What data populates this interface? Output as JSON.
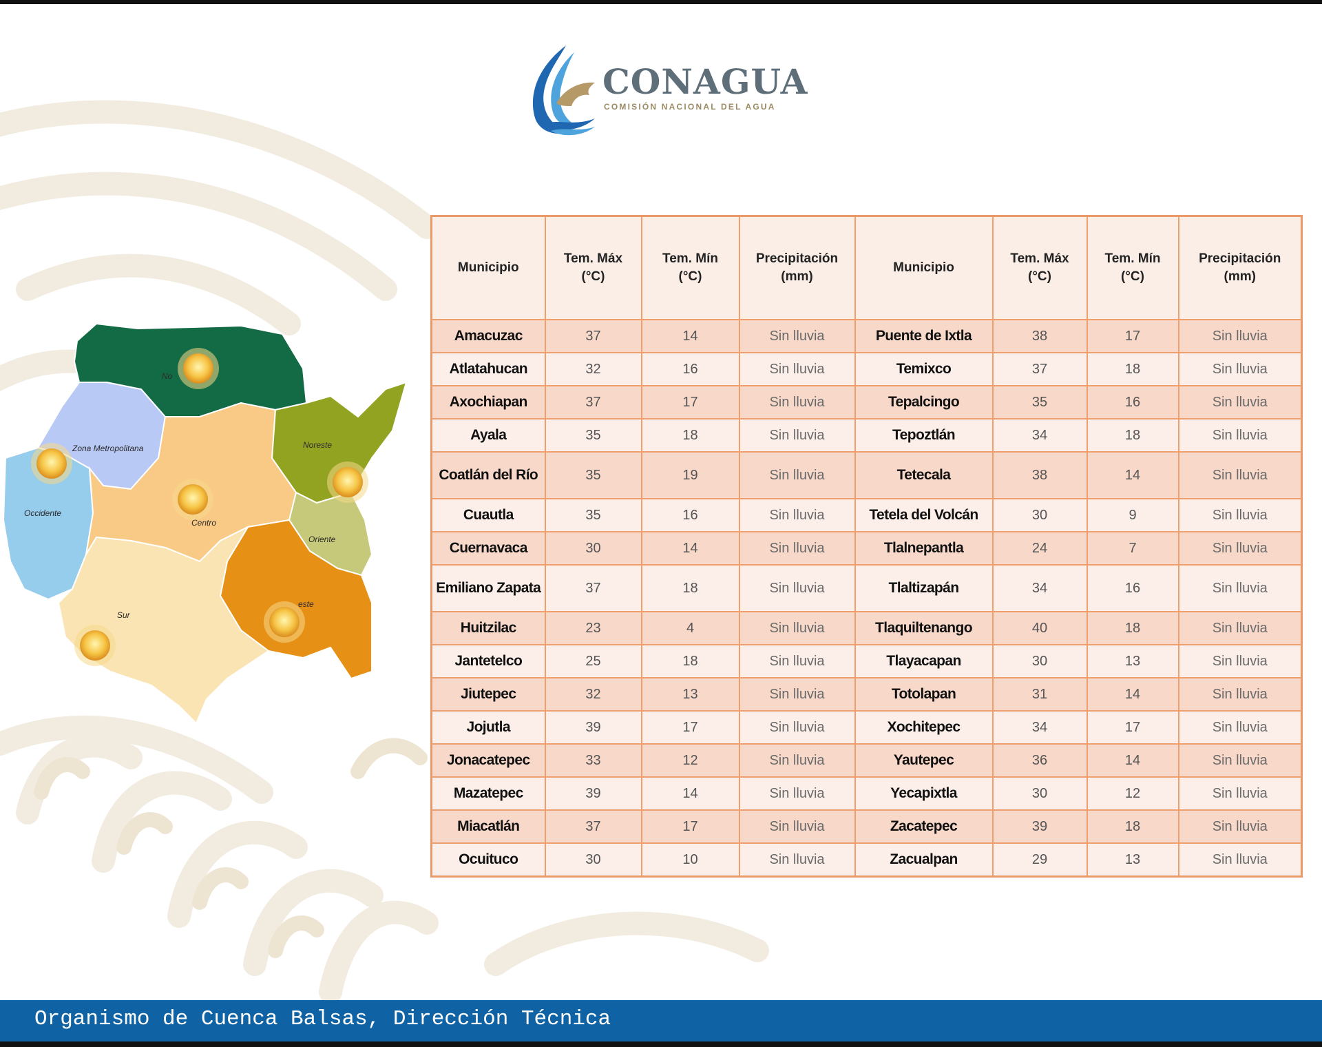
{
  "logo": {
    "name": "CONAGUA",
    "subtitle": "COMISIÓN NACIONAL DEL AGUA"
  },
  "map": {
    "regions": [
      {
        "key": "norte",
        "label": "No",
        "color": "#136b45",
        "weather_icon": "sun-icon"
      },
      {
        "key": "zona-metropolitana",
        "label": "Zona Metropolitana",
        "color": "#b8c9f6",
        "weather_icon": "sun-icon"
      },
      {
        "key": "noreste",
        "label": "Noreste",
        "color": "#92a321",
        "weather_icon": "sun-icon"
      },
      {
        "key": "occidente",
        "label": "Occidente",
        "color": "#96ccec",
        "weather_icon": ""
      },
      {
        "key": "centro",
        "label": "Centro",
        "color": "#f8ca85",
        "weather_icon": "sun-icon"
      },
      {
        "key": "oriente",
        "label": "Oriente",
        "color": "#c6c97a",
        "weather_icon": ""
      },
      {
        "key": "sur",
        "label": "Sur",
        "color": "#fbe4b3",
        "weather_icon": "sun-icon"
      },
      {
        "key": "sureste",
        "label": "este",
        "color": "#e69016",
        "weather_icon": "sun-icon"
      }
    ]
  },
  "table": {
    "headers": {
      "municipio": "Municipio",
      "tmax": [
        "Tem. Máx",
        "(°C)"
      ],
      "tmin": [
        "Tem. Mín",
        "(°C)"
      ],
      "precip": [
        "Precipitación",
        "(mm)"
      ]
    },
    "rows": [
      {
        "m1": "Amacuzac",
        "max1": "37",
        "min1": "14",
        "p1": "Sin lluvia",
        "m2": "Puente de Ixtla",
        "max2": "38",
        "min2": "17",
        "p2": "Sin lluvia"
      },
      {
        "m1": "Atlatahucan",
        "max1": "32",
        "min1": "16",
        "p1": "Sin lluvia",
        "m2": "Temixco",
        "max2": "37",
        "min2": "18",
        "p2": "Sin lluvia"
      },
      {
        "m1": "Axochiapan",
        "max1": "37",
        "min1": "17",
        "p1": "Sin lluvia",
        "m2": "Tepalcingo",
        "max2": "35",
        "min2": "16",
        "p2": "Sin lluvia"
      },
      {
        "m1": "Ayala",
        "max1": "35",
        "min1": "18",
        "p1": "Sin lluvia",
        "m2": "Tepoztlán",
        "max2": "34",
        "min2": "18",
        "p2": "Sin lluvia"
      },
      {
        "m1": "Coatlán del Río",
        "max1": "35",
        "min1": "19",
        "p1": "Sin lluvia",
        "m2": "Tetecala",
        "max2": "38",
        "min2": "14",
        "p2": "Sin lluvia"
      },
      {
        "m1": "Cuautla",
        "max1": "35",
        "min1": "16",
        "p1": "Sin lluvia",
        "m2": "Tetela del Volcán",
        "max2": "30",
        "min2": "9",
        "p2": "Sin lluvia"
      },
      {
        "m1": "Cuernavaca",
        "max1": "30",
        "min1": "14",
        "p1": "Sin lluvia",
        "m2": "Tlalnepantla",
        "max2": "24",
        "min2": "7",
        "p2": "Sin lluvia"
      },
      {
        "m1": "Emiliano Zapata",
        "max1": "37",
        "min1": "18",
        "p1": "Sin lluvia",
        "m2": "Tlaltizapán",
        "max2": "34",
        "min2": "16",
        "p2": "Sin lluvia"
      },
      {
        "m1": "Huitzilac",
        "max1": "23",
        "min1": "4",
        "p1": "Sin lluvia",
        "m2": "Tlaquiltenango",
        "max2": "40",
        "min2": "18",
        "p2": "Sin lluvia"
      },
      {
        "m1": "Jantetelco",
        "max1": "25",
        "min1": "18",
        "p1": "Sin lluvia",
        "m2": "Tlayacapan",
        "max2": "30",
        "min2": "13",
        "p2": "Sin lluvia"
      },
      {
        "m1": "Jiutepec",
        "max1": "32",
        "min1": "13",
        "p1": "Sin lluvia",
        "m2": "Totolapan",
        "max2": "31",
        "min2": "14",
        "p2": "Sin lluvia"
      },
      {
        "m1": "Jojutla",
        "max1": "39",
        "min1": "17",
        "p1": "Sin lluvia",
        "m2": "Xochitepec",
        "max2": "34",
        "min2": "17",
        "p2": "Sin lluvia"
      },
      {
        "m1": "Jonacatepec",
        "max1": "33",
        "min1": "12",
        "p1": "Sin lluvia",
        "m2": "Yautepec",
        "max2": "36",
        "min2": "14",
        "p2": "Sin lluvia"
      },
      {
        "m1": "Mazatepec",
        "max1": "39",
        "min1": "14",
        "p1": "Sin lluvia",
        "m2": "Yecapixtla",
        "max2": "30",
        "min2": "12",
        "p2": "Sin lluvia"
      },
      {
        "m1": "Miacatlán",
        "max1": "37",
        "min1": "17",
        "p1": "Sin lluvia",
        "m2": "Zacatepec",
        "max2": "39",
        "min2": "18",
        "p2": "Sin lluvia"
      },
      {
        "m1": "Ocuituco",
        "max1": "30",
        "min1": "10",
        "p1": "Sin lluvia",
        "m2": "Zacualpan",
        "max2": "29",
        "min2": "13",
        "p2": "Sin lluvia"
      }
    ]
  },
  "footer": {
    "text": "Organismo de Cuenca Balsas, Dirección Técnica"
  },
  "colors": {
    "footer_bg": "#0f62a3",
    "table_border": "#ef9f6d",
    "row_odd": "#f7d8c9",
    "row_even": "#fcefe9",
    "header_bg": "#fbeee7"
  }
}
